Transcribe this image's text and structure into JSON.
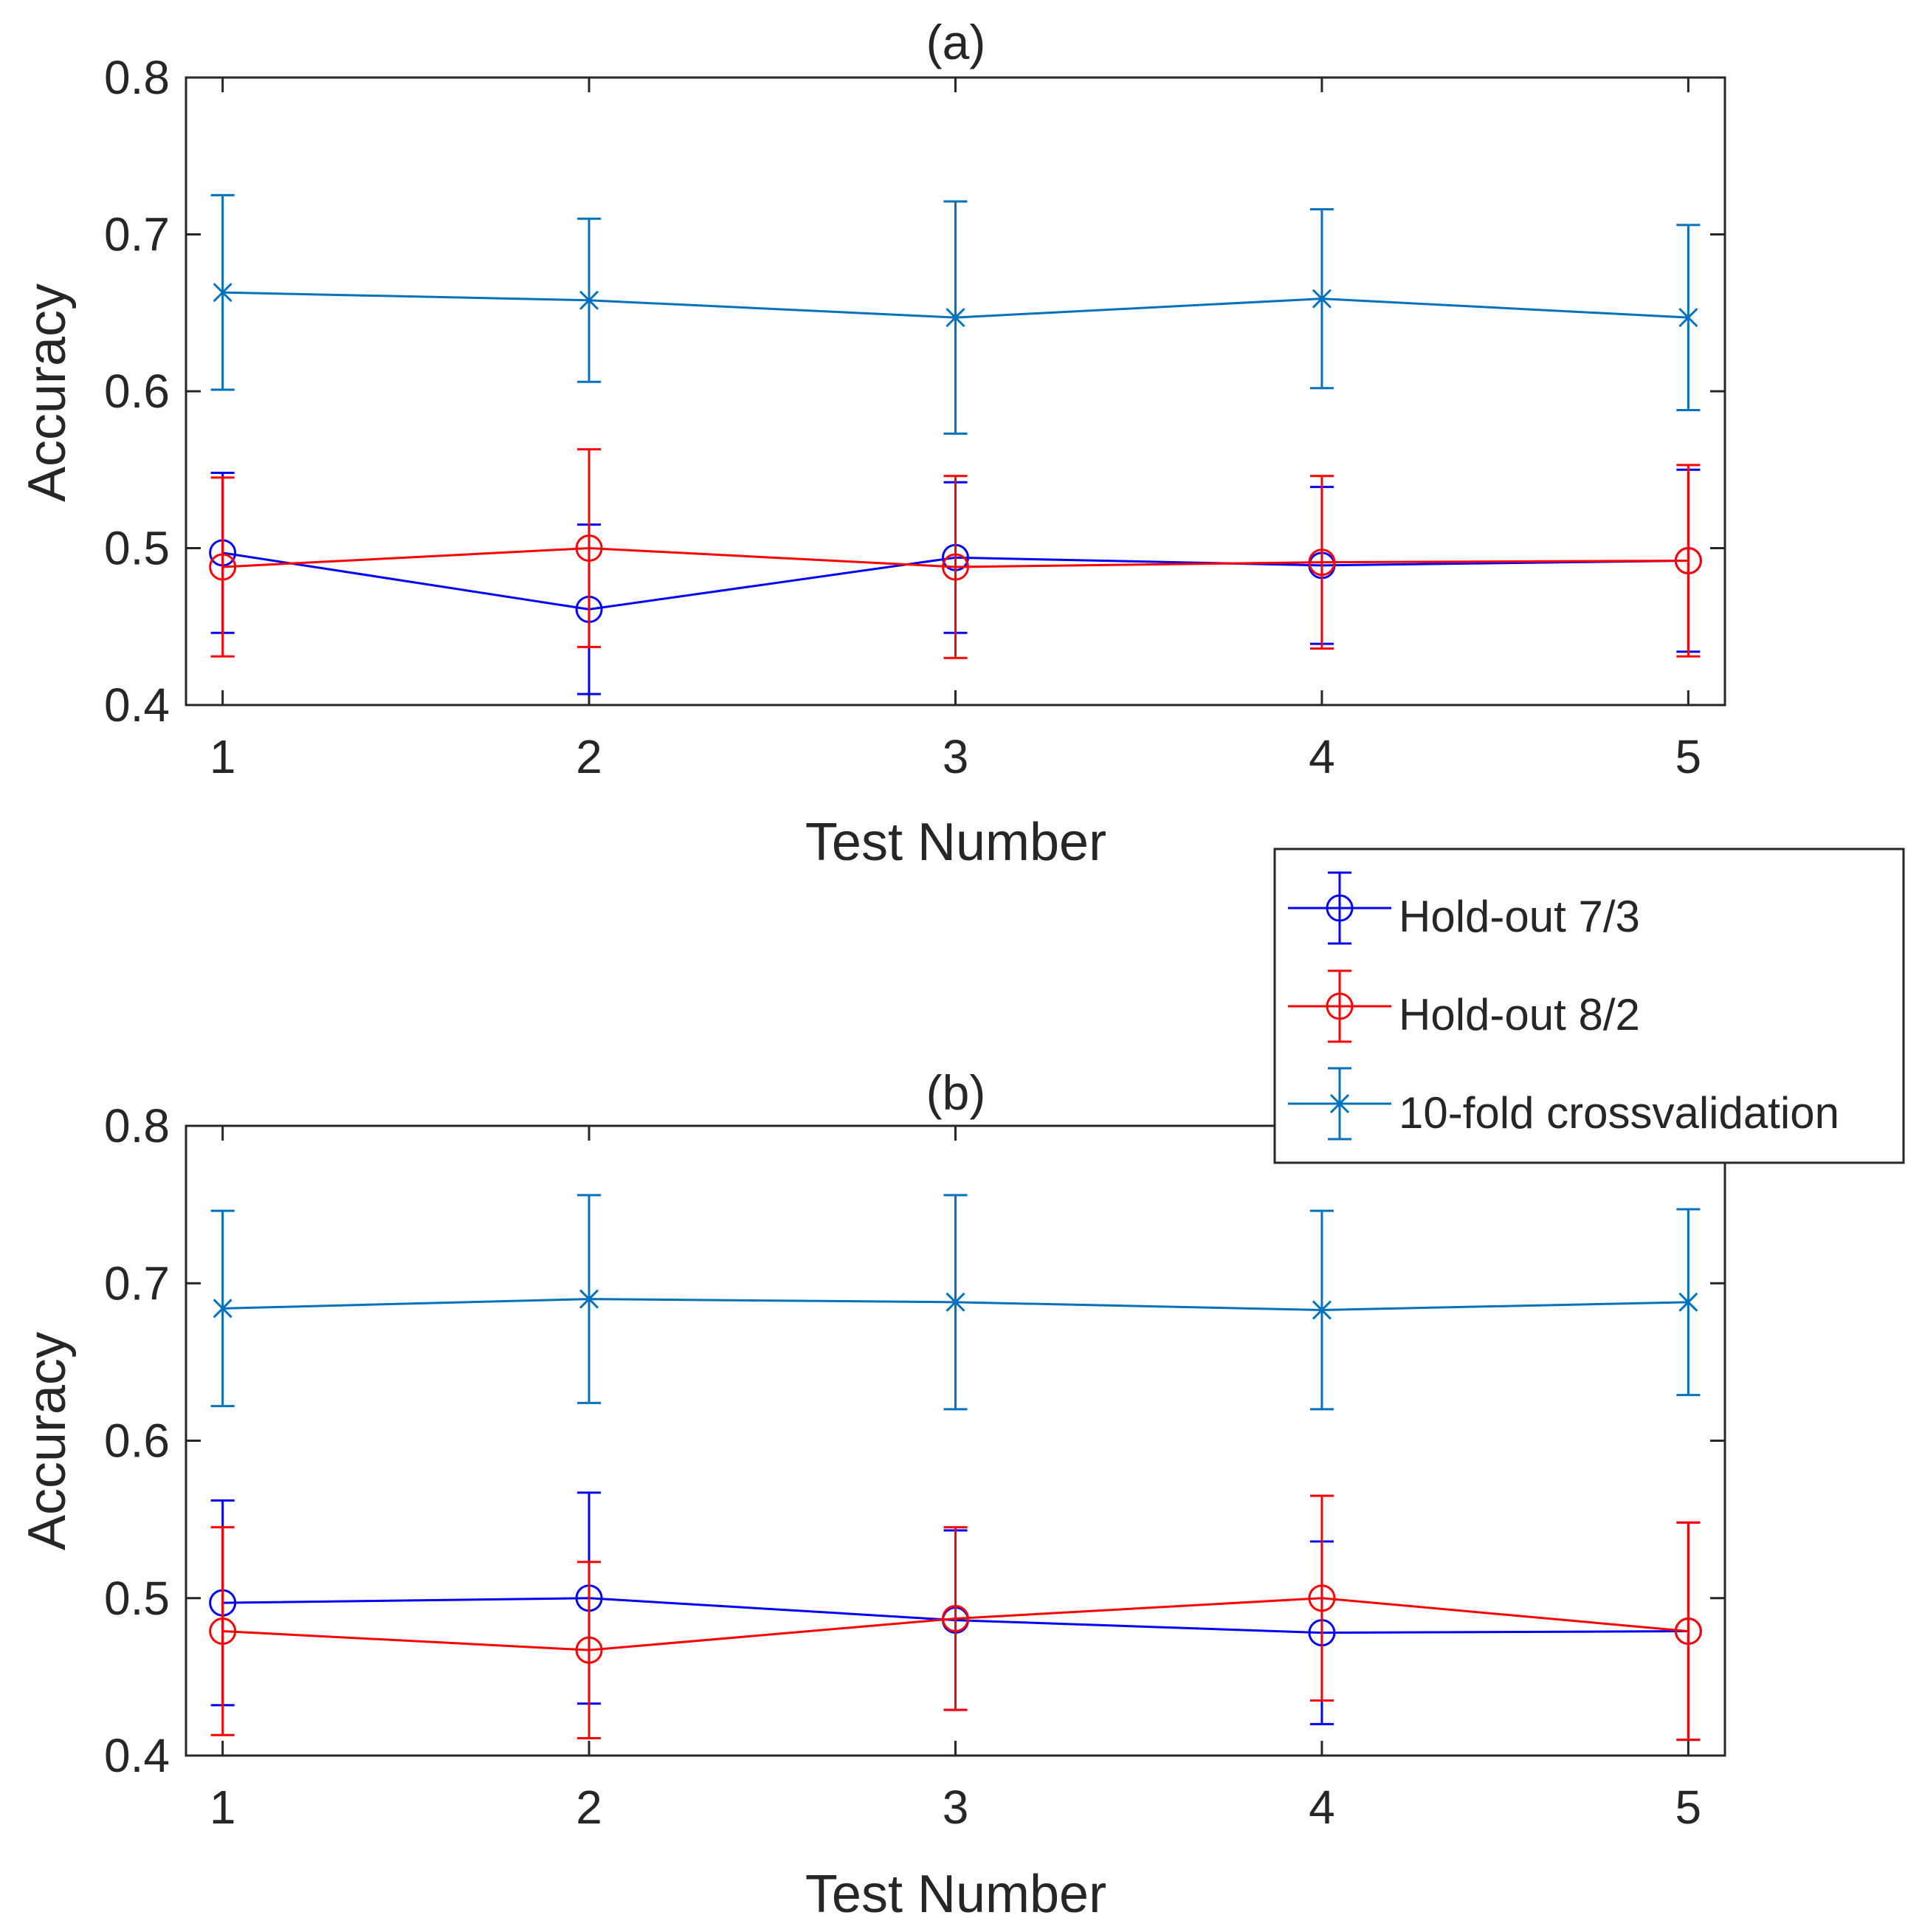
{
  "chart_data": [
    {
      "type": "line",
      "title": "(a)",
      "xlabel": "Test Number",
      "ylabel": "Accuracy",
      "x": [
        1,
        2,
        3,
        4,
        5
      ],
      "xticks": [
        "1",
        "2",
        "3",
        "4",
        "5"
      ],
      "yticks": [
        "0.4",
        "0.5",
        "0.6",
        "0.7",
        "0.8"
      ],
      "xlim": [
        0.9,
        5.1
      ],
      "ylim": [
        0.4,
        0.8
      ],
      "series": [
        {
          "name": "Hold-out 7/3",
          "color": "#0000ff",
          "marker": "circle",
          "values": [
            0.497,
            0.461,
            0.494,
            0.489,
            0.492
          ],
          "err": [
            0.051,
            0.054,
            0.048,
            0.05,
            0.058
          ]
        },
        {
          "name": "Hold-out 8/2",
          "color": "#ff0000",
          "marker": "circle",
          "values": [
            0.488,
            0.5,
            0.488,
            0.491,
            0.492
          ],
          "err": [
            0.057,
            0.063,
            0.058,
            0.055,
            0.061
          ]
        },
        {
          "name": "10-fold crossvalidation",
          "color": "#0072bd",
          "marker": "x",
          "values": [
            0.663,
            0.658,
            0.647,
            0.659,
            0.647
          ],
          "err": [
            0.062,
            0.052,
            0.074,
            0.057,
            0.059
          ]
        }
      ]
    },
    {
      "type": "line",
      "title": "(b)",
      "xlabel": "Test Number",
      "ylabel": "Accuracy",
      "x": [
        1,
        2,
        3,
        4,
        5
      ],
      "xticks": [
        "1",
        "2",
        "3",
        "4",
        "5"
      ],
      "yticks": [
        "0.4",
        "0.5",
        "0.6",
        "0.7",
        "0.8"
      ],
      "xlim": [
        0.9,
        5.1
      ],
      "ylim": [
        0.4,
        0.8
      ],
      "series": [
        {
          "name": "Hold-out 7/3",
          "color": "#0000ff",
          "marker": "circle",
          "values": [
            0.497,
            0.5,
            0.486,
            0.478,
            0.479
          ],
          "err": [
            0.065,
            0.067,
            0.057,
            0.058,
            0.069
          ]
        },
        {
          "name": "Hold-out 8/2",
          "color": "#ff0000",
          "marker": "circle",
          "values": [
            0.479,
            0.467,
            0.487,
            0.5,
            0.479
          ],
          "err": [
            0.066,
            0.056,
            0.058,
            0.065,
            0.069
          ]
        },
        {
          "name": "10-fold crossvalidation",
          "color": "#0072bd",
          "marker": "x",
          "values": [
            0.684,
            0.69,
            0.688,
            0.683,
            0.688
          ],
          "err": [
            0.062,
            0.066,
            0.068,
            0.063,
            0.059
          ]
        }
      ]
    }
  ],
  "legend": {
    "entries": [
      "Hold-out 7/3",
      "Hold-out 8/2",
      "10-fold crossvalidation"
    ],
    "placement": "right, between panels"
  }
}
